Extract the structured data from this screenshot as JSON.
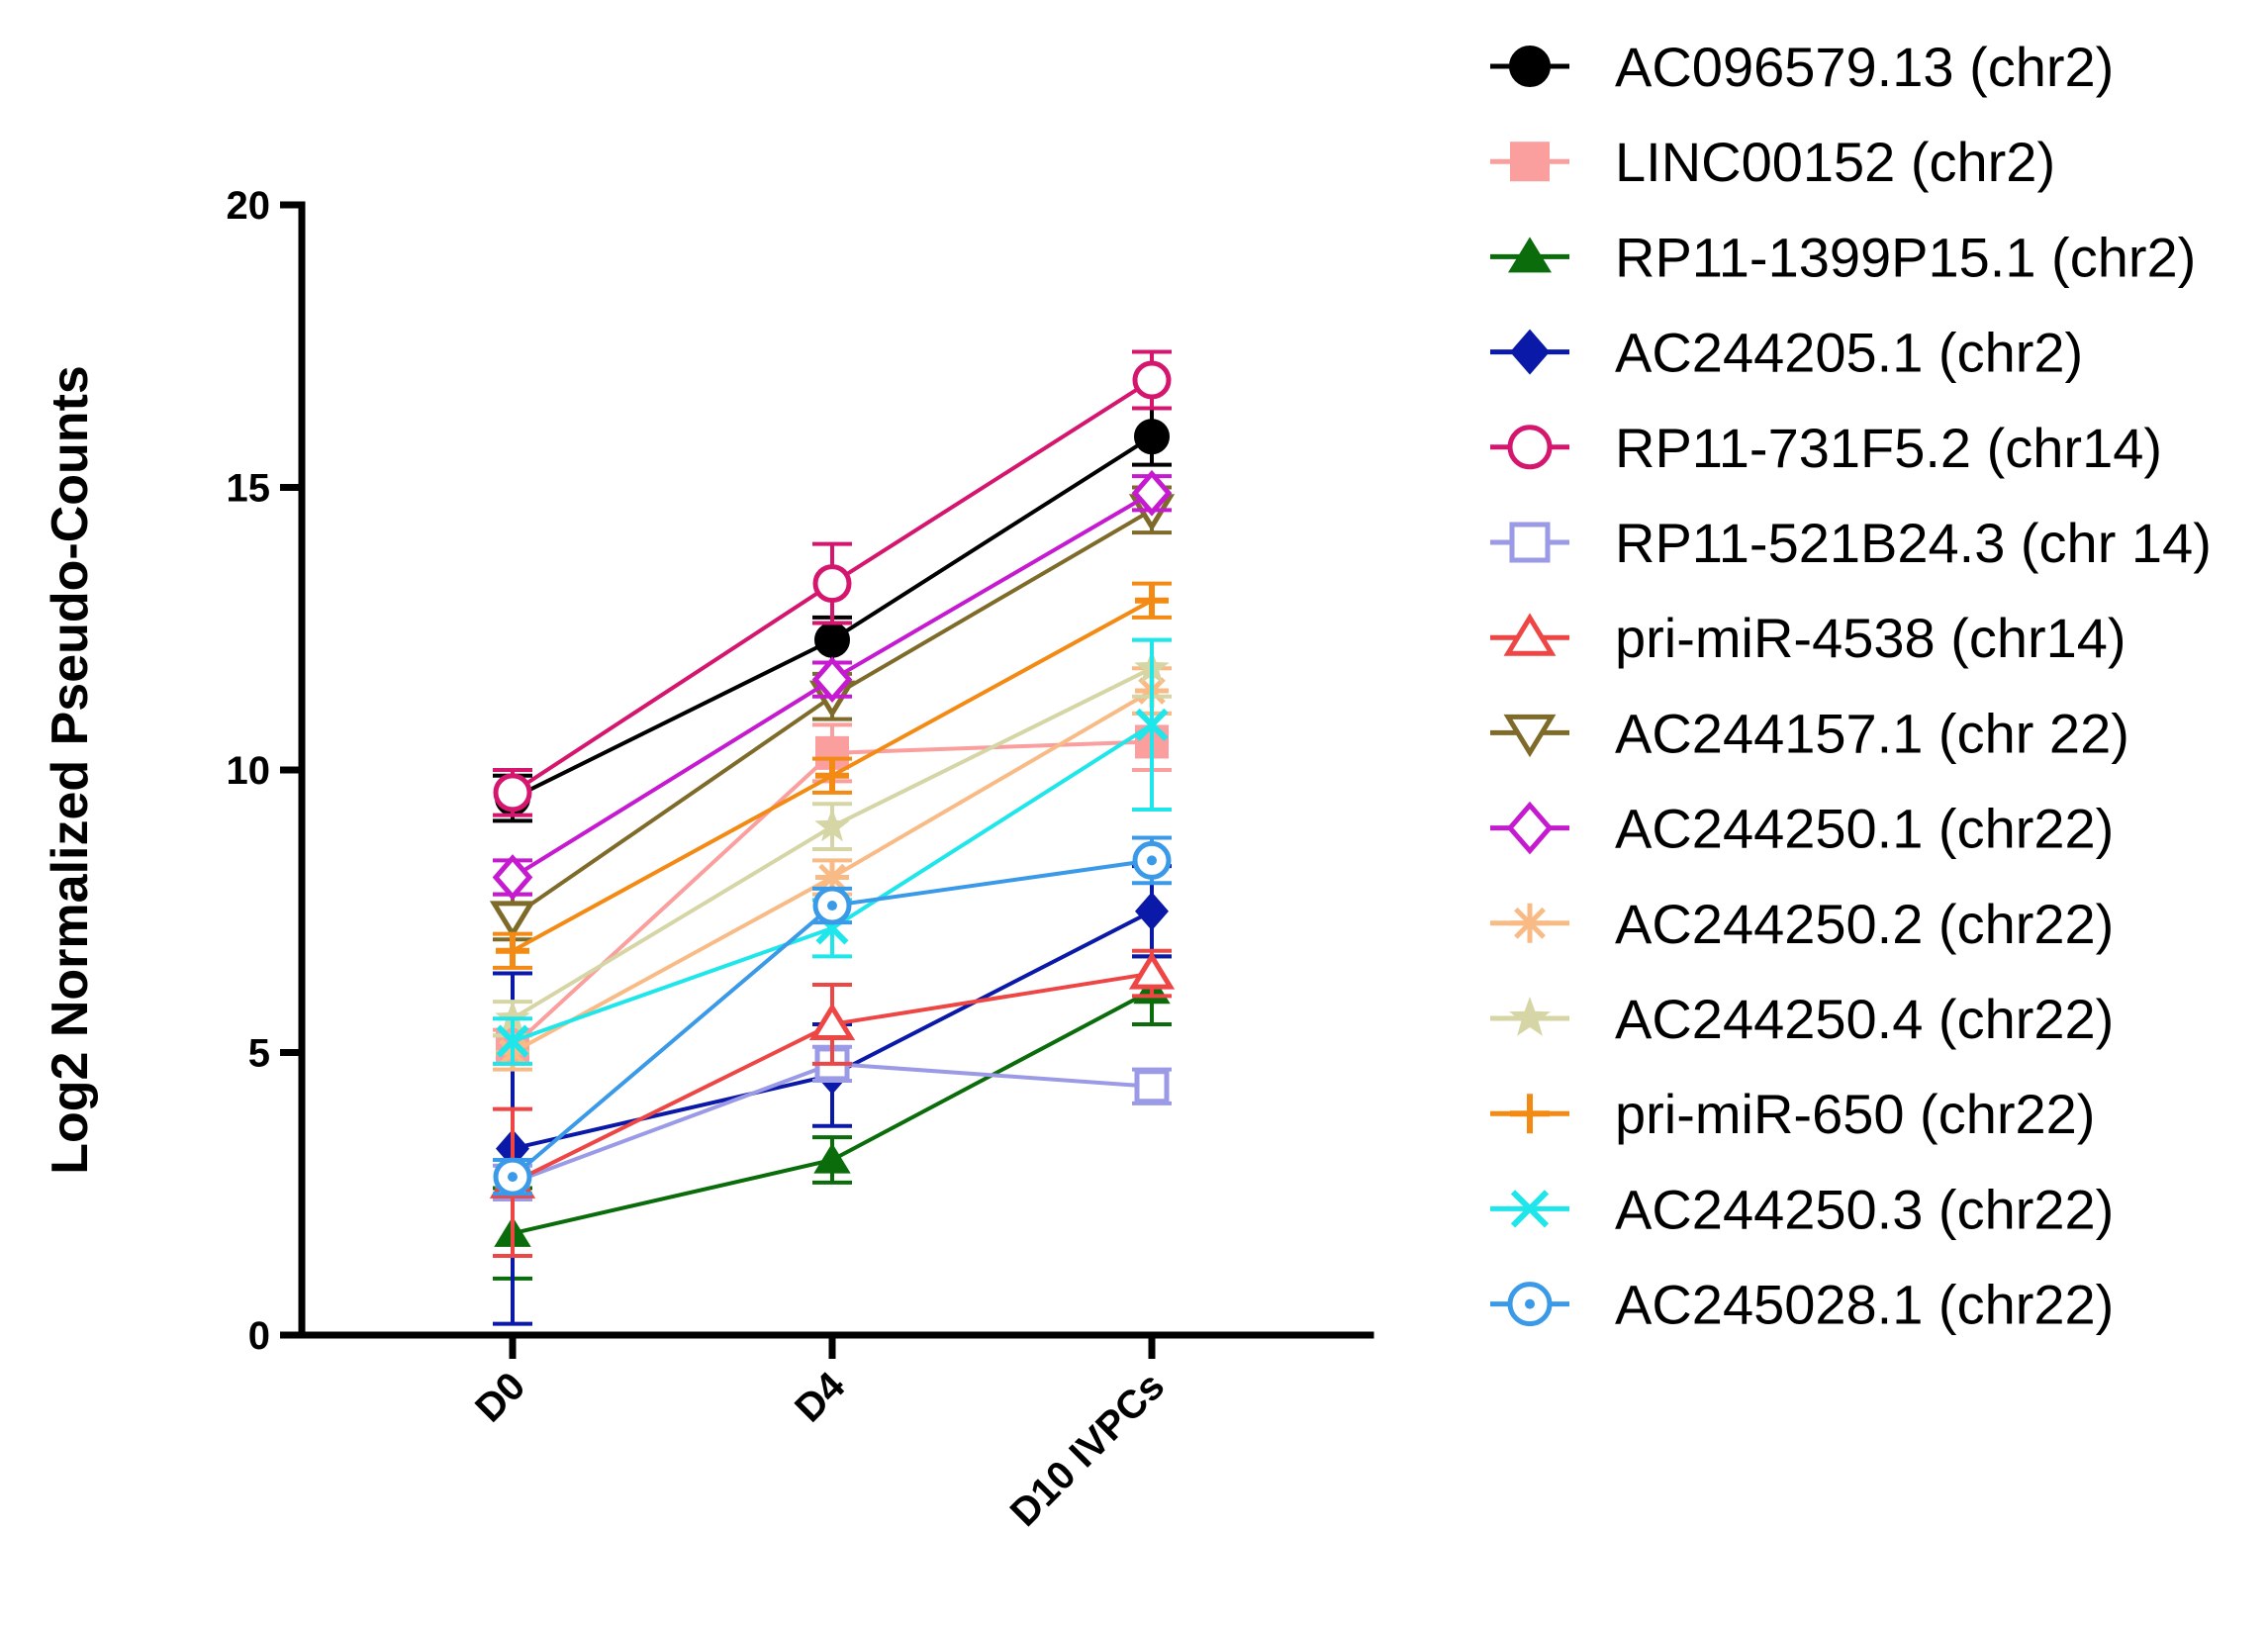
{
  "chart_data": {
    "type": "line",
    "ylabel": "Log2 Normalized Pseudo-Counts",
    "xlabel": "",
    "categories": [
      "D0",
      "D4",
      "D10 IVPCs"
    ],
    "ylim": [
      0,
      20
    ],
    "yticks": [
      0,
      5,
      10,
      15,
      20
    ],
    "legend_position": "right",
    "series": [
      {
        "name": "AC096579.13 (chr2)",
        "values": [
          9.5,
          12.3,
          15.9
        ],
        "errors": [
          0.4,
          0.4,
          0.5
        ],
        "color": "#000000",
        "marker": "circle-filled"
      },
      {
        "name": "LINC00152 (chr2)",
        "values": [
          5.1,
          10.3,
          10.5
        ],
        "errors": [
          0.3,
          0.5,
          0.5
        ],
        "color": "#fa9e9e",
        "marker": "square-filled"
      },
      {
        "name": "RP11-1399P15.1 (chr2)",
        "values": [
          1.8,
          3.1,
          6.1
        ],
        "errors": [
          0.8,
          0.4,
          0.6
        ],
        "color": "#0a6c0a",
        "marker": "triangle-filled"
      },
      {
        "name": "AC244205.1 (chr2)",
        "values": [
          3.3,
          4.6,
          7.5
        ],
        "errors": [
          3.1,
          0.9,
          0.8
        ],
        "color": "#0b19a8",
        "marker": "diamond-filled"
      },
      {
        "name": "RP11-731F5.2 (chr14)",
        "values": [
          9.6,
          13.3,
          16.9
        ],
        "errors": [
          0.4,
          0.7,
          0.5
        ],
        "color": "#d5166e",
        "marker": "circle-open"
      },
      {
        "name": "RP11-521B24.3 (chr 14)",
        "values": [
          2.7,
          4.8,
          4.4
        ],
        "errors": [
          0.3,
          0.3,
          0.3
        ],
        "color": "#9a9ae6",
        "marker": "square-open"
      },
      {
        "name": "pri-miR-4538 (chr14)",
        "values": [
          2.7,
          5.5,
          6.4
        ],
        "errors": [
          1.3,
          0.7,
          0.4
        ],
        "color": "#ee4545",
        "marker": "triangle-open"
      },
      {
        "name": "AC244157.1 (chr 22)",
        "values": [
          7.4,
          11.3,
          14.6
        ],
        "errors": [
          0.4,
          0.4,
          0.4
        ],
        "color": "#7e6b2a",
        "marker": "triangle-down-open"
      },
      {
        "name": "AC244250.1 (chr22)",
        "values": [
          8.1,
          11.6,
          14.9
        ],
        "errors": [
          0.3,
          0.3,
          0.3
        ],
        "color": "#c51ad0",
        "marker": "diamond-open"
      },
      {
        "name": "AC244250.2 (chr22)",
        "values": [
          5.0,
          8.1,
          11.4
        ],
        "errors": [
          0.3,
          0.3,
          0.4
        ],
        "color": "#f9bb85",
        "marker": "asterisk"
      },
      {
        "name": "AC244250.4 (chr22)",
        "values": [
          5.6,
          9.0,
          11.8
        ],
        "errors": [
          0.3,
          0.4,
          0.5
        ],
        "color": "#d5d5a6",
        "marker": "star"
      },
      {
        "name": "pri-miR-650 (chr22)",
        "values": [
          6.8,
          9.9,
          13.0
        ],
        "errors": [
          0.3,
          0.3,
          0.3
        ],
        "color": "#f28a14",
        "marker": "plus"
      },
      {
        "name": "AC244250.3 (chr22)",
        "values": [
          5.2,
          7.2,
          10.8
        ],
        "errors": [
          0.4,
          0.5,
          1.5
        ],
        "color": "#1ee6ea",
        "marker": "cross"
      },
      {
        "name": "AC245028.1 (chr22)",
        "values": [
          2.8,
          7.6,
          8.4
        ],
        "errors": [
          0.3,
          0.3,
          0.4
        ],
        "color": "#3a9ae8",
        "marker": "circle-dot"
      }
    ]
  }
}
